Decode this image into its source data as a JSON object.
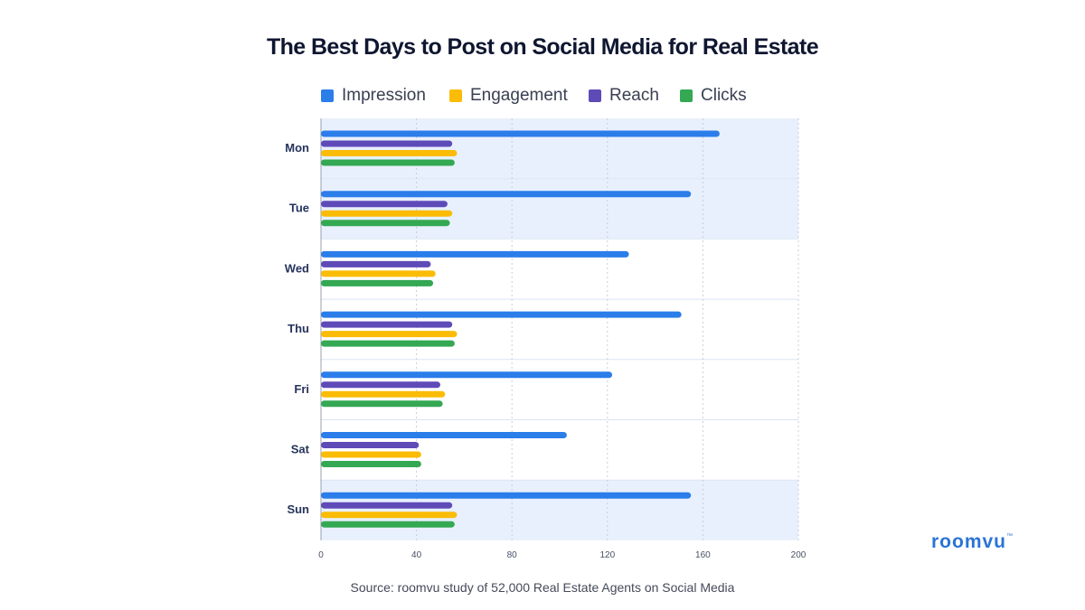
{
  "header": {
    "title": "The Best Days to Post on Social Media for Real Estate"
  },
  "footer": {
    "source": "Source: roomvu study of 52,000 Real Estate Agents on Social Media",
    "brand": "roomvu",
    "brand_mark": "™"
  },
  "colors": {
    "impression": "#2b7de9",
    "engagement": "#fbbc05",
    "reach": "#5e4bb8",
    "clicks": "#34a853",
    "highlight": "#e8f0fd",
    "grid": "#c9cdd6"
  },
  "chart_data": {
    "type": "bar",
    "orientation": "horizontal",
    "title": "The Best Days to Post on Social Media for Real Estate",
    "categories": [
      "Mon",
      "Tue",
      "Wed",
      "Thu",
      "Fri",
      "Sat",
      "Sun"
    ],
    "highlighted_categories": [
      "Mon",
      "Tue",
      "Sun"
    ],
    "series": [
      {
        "name": "Impression",
        "values": [
          167,
          155,
          129,
          151,
          122,
          103,
          155
        ]
      },
      {
        "name": "Reach",
        "values": [
          55,
          53,
          46,
          55,
          50,
          41,
          55
        ]
      },
      {
        "name": "Engagement",
        "values": [
          57,
          55,
          48,
          57,
          52,
          42,
          57
        ]
      },
      {
        "name": "Clicks",
        "values": [
          56,
          54,
          47,
          56,
          51,
          42,
          56
        ]
      }
    ],
    "legend_order": [
      "Impression",
      "Engagement",
      "Reach",
      "Clicks"
    ],
    "legend_position": "top",
    "x_ticks": [
      0,
      40,
      80,
      120,
      160,
      200
    ],
    "xlim": [
      0,
      200
    ],
    "grid": "vertical-dotted"
  }
}
